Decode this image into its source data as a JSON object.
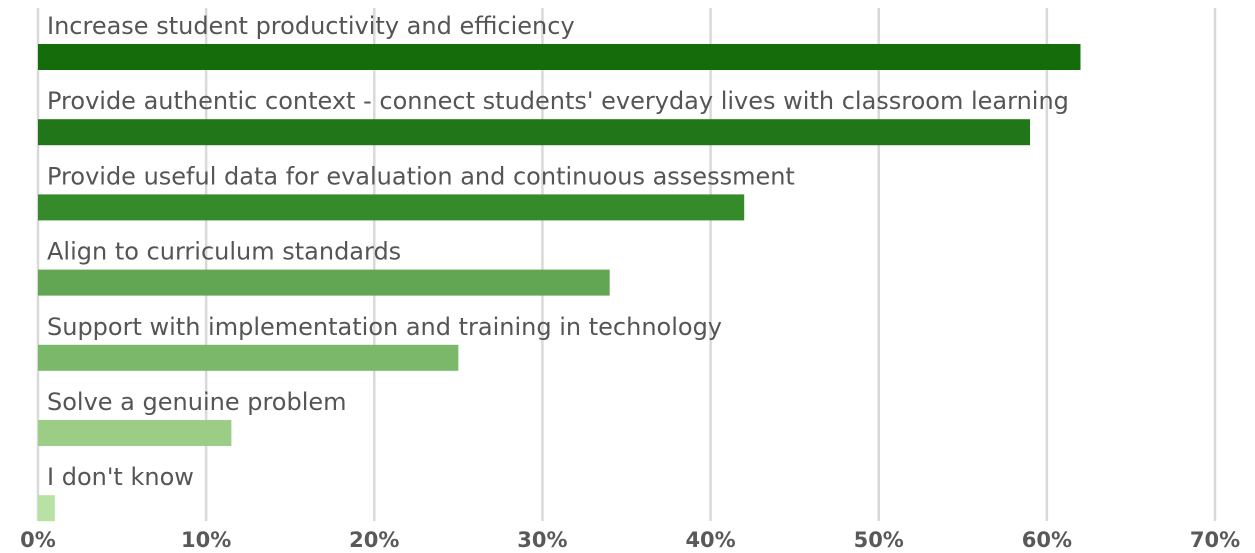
{
  "chart_data": {
    "type": "hbar",
    "categories": [
      "Increase student productivity and efficiency",
      "Provide authentic context - connect students' everyday lives with classroom learning",
      "Provide useful data for evaluation and continuous assessment",
      "Align to curriculum standards",
      "Support with implementation and training in technology",
      "Solve a genuine problem",
      "I don't know"
    ],
    "values": [
      62,
      59,
      42,
      34,
      25,
      11.5,
      1
    ],
    "colors": [
      "#146c0a",
      "#22761a",
      "#358a2a",
      "#62a653",
      "#7bb86a",
      "#9ccd86",
      "#b8e2a3"
    ],
    "xlim": [
      0,
      70
    ],
    "xticks": [
      {
        "value": 0,
        "label": "0%"
      },
      {
        "value": 10,
        "label": "10%"
      },
      {
        "value": 20,
        "label": "20%"
      },
      {
        "value": 30,
        "label": "30%"
      },
      {
        "value": 40,
        "label": "40%"
      },
      {
        "value": 50,
        "label": "50%"
      },
      {
        "value": 60,
        "label": "60%"
      },
      {
        "value": 70,
        "label": "70%"
      }
    ],
    "grid": true
  }
}
